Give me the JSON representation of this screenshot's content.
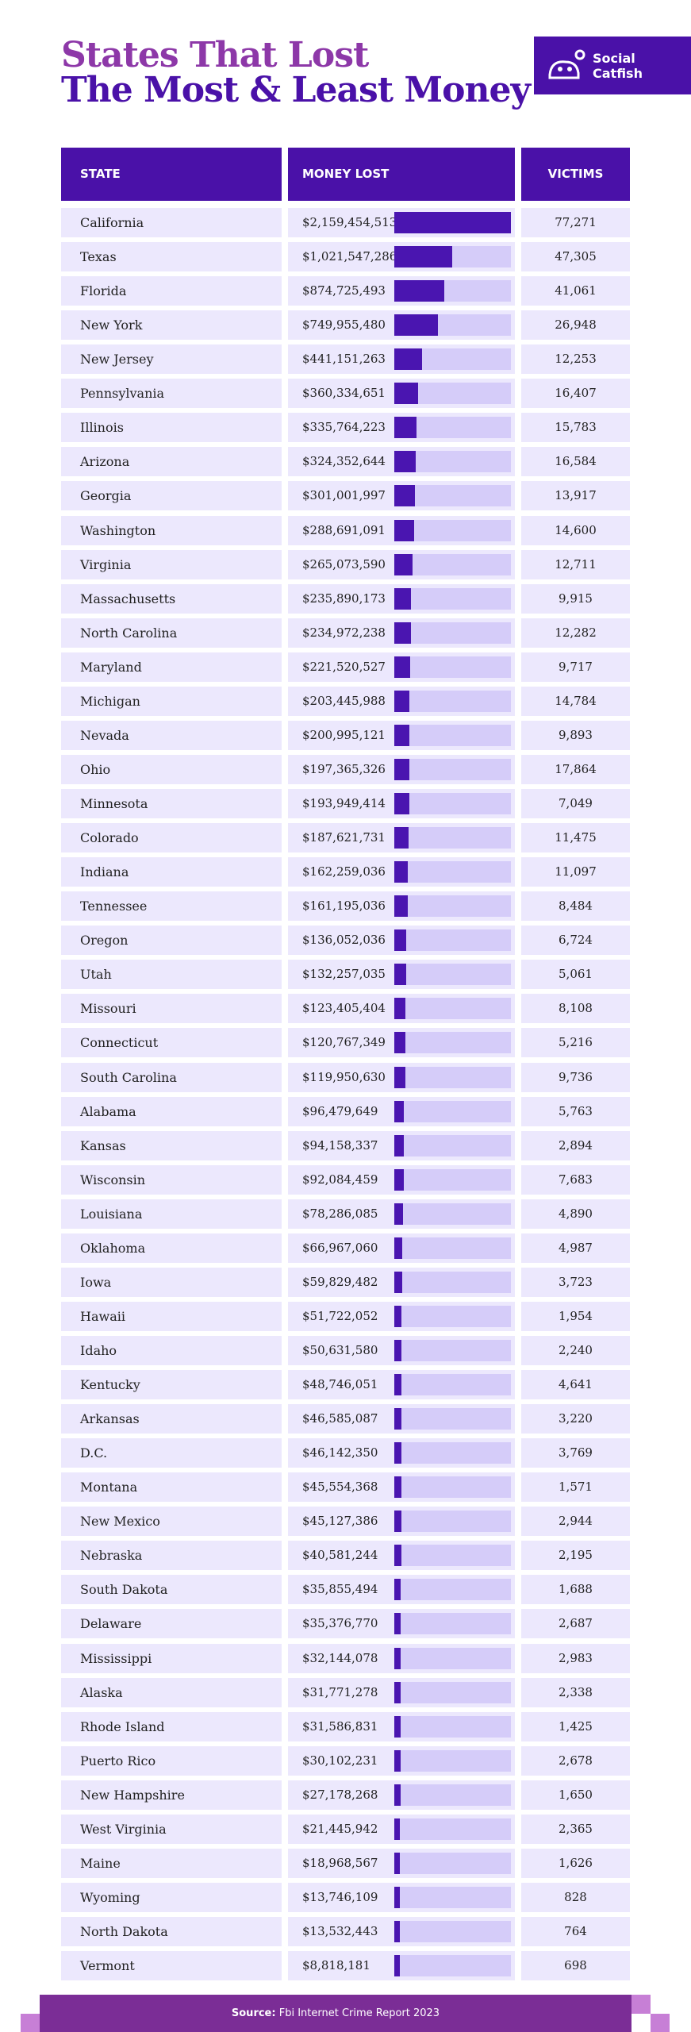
{
  "header": {
    "title_line1": "States That Lost",
    "title_line2": "The Most & Least Money",
    "logo_line1": "Social",
    "logo_line2": "Catfish"
  },
  "table": {
    "columns": [
      "STATE",
      "MONEY LOST",
      "VICTIMS"
    ],
    "rows": [
      {
        "state": "California",
        "money_lost": {
          "value": 2159454513,
          "label": "$2,159,454,513"
        },
        "victims": "77,271"
      },
      {
        "state": "Texas",
        "money_lost": {
          "value": 1021547286,
          "label": "$1,021,547,286"
        },
        "victims": "47,305"
      },
      {
        "state": "Florida",
        "money_lost": {
          "value": 874725493,
          "label": "$874,725,493"
        },
        "victims": "41,061"
      },
      {
        "state": "New York",
        "money_lost": {
          "value": 749955480,
          "label": "$749,955,480"
        },
        "victims": "26,948"
      },
      {
        "state": "New Jersey",
        "money_lost": {
          "value": 441151263,
          "label": "$441,151,263"
        },
        "victims": "12,253"
      },
      {
        "state": "Pennsylvania",
        "money_lost": {
          "value": 360334651,
          "label": "$360,334,651"
        },
        "victims": "16,407"
      },
      {
        "state": "Illinois",
        "money_lost": {
          "value": 335764223,
          "label": "$335,764,223"
        },
        "victims": "15,783"
      },
      {
        "state": "Arizona",
        "money_lost": {
          "value": 324352644,
          "label": "$324,352,644"
        },
        "victims": "16,584"
      },
      {
        "state": "Georgia",
        "money_lost": {
          "value": 301001997,
          "label": "$301,001,997"
        },
        "victims": "13,917"
      },
      {
        "state": "Washington",
        "money_lost": {
          "value": 288691091,
          "label": "$288,691,091"
        },
        "victims": "14,600"
      },
      {
        "state": "Virginia",
        "money_lost": {
          "value": 265073590,
          "label": "$265,073,590"
        },
        "victims": "12,711"
      },
      {
        "state": "Massachusetts",
        "money_lost": {
          "value": 235890173,
          "label": "$235,890,173"
        },
        "victims": "9,915"
      },
      {
        "state": "North Carolina",
        "money_lost": {
          "value": 234972238,
          "label": "$234,972,238"
        },
        "victims": "12,282"
      },
      {
        "state": "Maryland",
        "money_lost": {
          "value": 221520527,
          "label": "$221,520,527"
        },
        "victims": "9,717"
      },
      {
        "state": "Michigan",
        "money_lost": {
          "value": 203445988,
          "label": "$203,445,988"
        },
        "victims": "14,784"
      },
      {
        "state": "Nevada",
        "money_lost": {
          "value": 200995121,
          "label": "$200,995,121"
        },
        "victims": "9,893"
      },
      {
        "state": "Ohio",
        "money_lost": {
          "value": 197365326,
          "label": "$197,365,326"
        },
        "victims": "17,864"
      },
      {
        "state": "Minnesota",
        "money_lost": {
          "value": 193949414,
          "label": "$193,949,414"
        },
        "victims": "7,049"
      },
      {
        "state": "Colorado",
        "money_lost": {
          "value": 187621731,
          "label": "$187,621,731"
        },
        "victims": "11,475"
      },
      {
        "state": "Indiana",
        "money_lost": {
          "value": 162259036,
          "label": "$162,259,036"
        },
        "victims": "11,097"
      },
      {
        "state": "Tennessee",
        "money_lost": {
          "value": 161195036,
          "label": "$161,195,036"
        },
        "victims": "8,484"
      },
      {
        "state": "Oregon",
        "money_lost": {
          "value": 136052036,
          "label": "$136,052,036"
        },
        "victims": "6,724"
      },
      {
        "state": "Utah",
        "money_lost": {
          "value": 132257035,
          "label": "$132,257,035"
        },
        "victims": "5,061"
      },
      {
        "state": "Missouri",
        "money_lost": {
          "value": 123405404,
          "label": "$123,405,404"
        },
        "victims": "8,108"
      },
      {
        "state": "Connecticut",
        "money_lost": {
          "value": 120767349,
          "label": "$120,767,349"
        },
        "victims": "5,216"
      },
      {
        "state": "South Carolina",
        "money_lost": {
          "value": 119950630,
          "label": "$119,950,630"
        },
        "victims": "9,736"
      },
      {
        "state": "Alabama",
        "money_lost": {
          "value": 96479649,
          "label": "$96,479,649"
        },
        "victims": "5,763"
      },
      {
        "state": "Kansas",
        "money_lost": {
          "value": 94158337,
          "label": "$94,158,337"
        },
        "victims": "2,894"
      },
      {
        "state": "Wisconsin",
        "money_lost": {
          "value": 92084459,
          "label": "$92,084,459"
        },
        "victims": "7,683"
      },
      {
        "state": "Louisiana",
        "money_lost": {
          "value": 78286085,
          "label": "$78,286,085"
        },
        "victims": "4,890"
      },
      {
        "state": "Oklahoma",
        "money_lost": {
          "value": 66967060,
          "label": "$66,967,060"
        },
        "victims": "4,987"
      },
      {
        "state": "Iowa",
        "money_lost": {
          "value": 59829482,
          "label": "$59,829,482"
        },
        "victims": "3,723"
      },
      {
        "state": "Hawaii",
        "money_lost": {
          "value": 51722052,
          "label": "$51,722,052"
        },
        "victims": "1,954"
      },
      {
        "state": "Idaho",
        "money_lost": {
          "value": 50631580,
          "label": "$50,631,580"
        },
        "victims": "2,240"
      },
      {
        "state": "Kentucky",
        "money_lost": {
          "value": 48746051,
          "label": "$48,746,051"
        },
        "victims": "4,641"
      },
      {
        "state": "Arkansas",
        "money_lost": {
          "value": 46585087,
          "label": "$46,585,087"
        },
        "victims": "3,220"
      },
      {
        "state": "D.C.",
        "money_lost": {
          "value": 46142350,
          "label": "$46,142,350"
        },
        "victims": "3,769"
      },
      {
        "state": "Montana",
        "money_lost": {
          "value": 45554368,
          "label": "$45,554,368"
        },
        "victims": "1,571"
      },
      {
        "state": "New Mexico",
        "money_lost": {
          "value": 45127386,
          "label": "$45,127,386"
        },
        "victims": "2,944"
      },
      {
        "state": "Nebraska",
        "money_lost": {
          "value": 40581244,
          "label": "$40,581,244"
        },
        "victims": "2,195"
      },
      {
        "state": "South Dakota",
        "money_lost": {
          "value": 35855494,
          "label": "$35,855,494"
        },
        "victims": "1,688"
      },
      {
        "state": "Delaware",
        "money_lost": {
          "value": 35376770,
          "label": "$35,376,770"
        },
        "victims": "2,687"
      },
      {
        "state": "Mississippi",
        "money_lost": {
          "value": 32144078,
          "label": "$32,144,078"
        },
        "victims": "2,983"
      },
      {
        "state": "Alaska",
        "money_lost": {
          "value": 31771278,
          "label": "$31,771,278"
        },
        "victims": "2,338"
      },
      {
        "state": "Rhode Island",
        "money_lost": {
          "value": 31586831,
          "label": "$31,586,831"
        },
        "victims": "1,425"
      },
      {
        "state": "Puerto Rico",
        "money_lost": {
          "value": 30102231,
          "label": "$30,102,231"
        },
        "victims": "2,678"
      },
      {
        "state": "New Hampshire",
        "money_lost": {
          "value": 27178268,
          "label": "$27,178,268"
        },
        "victims": "1,650"
      },
      {
        "state": "West Virginia",
        "money_lost": {
          "value": 21445942,
          "label": "$21,445,942"
        },
        "victims": "2,365"
      },
      {
        "state": "Maine",
        "money_lost": {
          "value": 18968567,
          "label": "$18,968,567"
        },
        "victims": "1,626"
      },
      {
        "state": "Wyoming",
        "money_lost": {
          "value": 13746109,
          "label": "$13,746,109"
        },
        "victims": "828"
      },
      {
        "state": "North Dakota",
        "money_lost": {
          "value": 13532443,
          "label": "$13,532,443"
        },
        "victims": "764"
      },
      {
        "state": "Vermont",
        "money_lost": {
          "value": 8818181,
          "label": "$8,818,181"
        },
        "victims": "698"
      }
    ]
  },
  "footer": {
    "label": "Source:",
    "text": "Fbi Internet Crime Report 2023"
  }
}
